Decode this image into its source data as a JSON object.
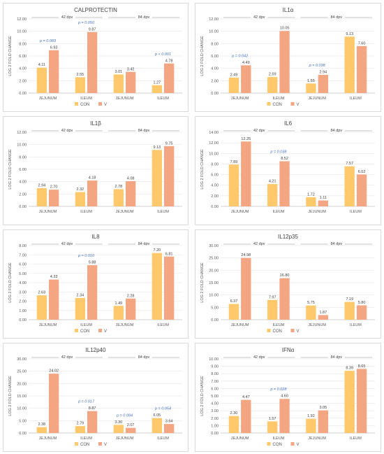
{
  "colors": {
    "con": "#ffc96b",
    "v": "#f4a582",
    "grid": "#e6e6e6",
    "axis": "#bfbfbf"
  },
  "chart_data": [
    {
      "type": "bar",
      "title": "CALPROTECTIN",
      "ylabel": "LOG 2 FOLD CHANGE",
      "ylim": [
        0,
        12
      ],
      "yticks": [
        "0.00",
        "2.00",
        "4.00",
        "6.00",
        "8.00",
        "10.00",
        "12.00"
      ],
      "categories": [
        "JEJUNUM",
        "ILEUM",
        "JEJUNUM",
        "ILEUM"
      ],
      "groups": [
        "42 dpv",
        "84 dpv"
      ],
      "legend": [
        "CON",
        "V"
      ],
      "series": [
        {
          "name": "CON",
          "values": [
            4.11,
            2.55,
            3.01,
            1.27
          ],
          "labels": [
            "4.11",
            "2.55",
            "3.01",
            "1.27"
          ]
        },
        {
          "name": "V",
          "values": [
            6.93,
            9.87,
            3.42,
            4.78
          ],
          "labels": [
            "6.93",
            "9.87",
            "3.42",
            "4.78"
          ]
        }
      ],
      "pvalues": [
        "p = 0.083",
        "p = 0.050",
        "",
        "p < 0.001"
      ]
    },
    {
      "type": "bar",
      "title": "IL1α",
      "ylabel": "LOG 2 FOLD CHANGE",
      "ylim": [
        0,
        12
      ],
      "yticks": [
        "0.00",
        "2.00",
        "4.00",
        "6.00",
        "8.00",
        "10.00",
        "12.00"
      ],
      "categories": [
        "JEJUNUM",
        "ILEUM",
        "JEJUNUM",
        "ILEUM"
      ],
      "groups": [
        "42 dpv",
        "84 dpv"
      ],
      "legend": [
        "CON",
        "V"
      ],
      "series": [
        {
          "name": "CON",
          "values": [
            2.49,
            2.59,
            1.55,
            9.13
          ],
          "labels": [
            "2.49",
            "2.59",
            "1.55",
            "9.13"
          ]
        },
        {
          "name": "V",
          "values": [
            4.49,
            10.05,
            2.94,
            7.6
          ],
          "labels": [
            "4.49",
            "10.05",
            "2.94",
            "7.60"
          ]
        }
      ],
      "pvalues": [
        "p = 0.042",
        "",
        "p = 0.038",
        ""
      ]
    },
    {
      "type": "bar",
      "title": "IL1β",
      "ylabel": "LOG 2 FOLD CHANGE",
      "ylim": [
        0,
        12
      ],
      "yticks": [
        "0.00",
        "2.00",
        "4.00",
        "6.00",
        "8.00",
        "10.00",
        "12.00"
      ],
      "categories": [
        "JEJUNUM",
        "ILEUM",
        "JEJUNUM",
        "ILEUM"
      ],
      "groups": [
        "42 dpv",
        "84 dpv"
      ],
      "legend": [],
      "series": [
        {
          "name": "CON",
          "values": [
            2.94,
            2.32,
            2.78,
            9.13
          ],
          "labels": [
            "2.94",
            "2.32",
            "2.78",
            "9.13"
          ]
        },
        {
          "name": "V",
          "values": [
            2.7,
            4.18,
            4.08,
            9.75
          ],
          "labels": [
            "2.70",
            "4.18",
            "4.08",
            "9.75"
          ]
        }
      ],
      "pvalues": [
        "",
        "",
        "",
        ""
      ]
    },
    {
      "type": "bar",
      "title": "IL6",
      "ylabel": "LOG 2 FOLD CHANGE",
      "ylim": [
        0,
        14
      ],
      "yticks": [
        "0.00",
        "2.00",
        "4.00",
        "6.00",
        "8.00",
        "10.00",
        "12.00",
        "14.00"
      ],
      "categories": [
        "JEJUNUM",
        "ILEUM",
        "JEJUNUM",
        "ILEUM"
      ],
      "groups": [
        "42 dpv",
        "84 dpv"
      ],
      "legend": [],
      "series": [
        {
          "name": "CON",
          "values": [
            7.89,
            4.21,
            1.72,
            7.57
          ],
          "labels": [
            "7.89",
            "4.21",
            "1.72",
            "7.57"
          ]
        },
        {
          "name": "V",
          "values": [
            12.25,
            8.52,
            1.11,
            6.02
          ],
          "labels": [
            "12.25",
            "8.52",
            "1.11",
            "6.02"
          ]
        }
      ],
      "pvalues": [
        "",
        "p = 0.038",
        "",
        ""
      ]
    },
    {
      "type": "bar",
      "title": "IL8",
      "ylabel": "LOG 2 FOLD CHANGE",
      "ylim": [
        0,
        8
      ],
      "yticks": [
        "0.00",
        "1.00",
        "2.00",
        "3.00",
        "4.00",
        "5.00",
        "6.00",
        "7.00",
        "8.00"
      ],
      "categories": [
        "JEJUNUM",
        "ILEUM",
        "JEJUNUM",
        "ILEUM"
      ],
      "groups": [
        "42 dpv",
        "84 dpv"
      ],
      "legend": [
        "CON",
        "V"
      ],
      "series": [
        {
          "name": "CON",
          "values": [
            2.63,
            2.34,
            1.49,
            7.2
          ],
          "labels": [
            "2.63",
            "2.34",
            "1.49",
            "7.20"
          ]
        },
        {
          "name": "V",
          "values": [
            4.33,
            5.88,
            2.28,
            6.81
          ],
          "labels": [
            "4.33",
            "5.88",
            "2.28",
            "6.81"
          ]
        }
      ],
      "pvalues": [
        "",
        "p = 0.010",
        "",
        ""
      ]
    },
    {
      "type": "bar",
      "title": "IL12p35",
      "ylabel": "LOG 2 FOLD CHANGE",
      "ylim": [
        0,
        30
      ],
      "yticks": [
        "0.00",
        "5.00",
        "10.00",
        "15.00",
        "20.00",
        "25.00",
        "30.00"
      ],
      "categories": [
        "JEJUNUM",
        "ILEUM",
        "JEJUNUM",
        "ILEUM"
      ],
      "groups": [
        "42 dpv",
        "84 dpv"
      ],
      "legend": [
        "CON",
        "V"
      ],
      "series": [
        {
          "name": "CON",
          "values": [
            6.37,
            7.97,
            5.75,
            7.19
          ],
          "labels": [
            "6.37",
            "7.97",
            "5.75",
            "7.19"
          ]
        },
        {
          "name": "V",
          "values": [
            24.98,
            16.8,
            1.87,
            5.8
          ],
          "labels": [
            "24.98",
            "16.80",
            "1.87",
            "5.80"
          ]
        }
      ],
      "pvalues": [
        "",
        "",
        "",
        ""
      ]
    },
    {
      "type": "bar",
      "title": "IL12p40",
      "ylabel": "LOG 2 FOLD CHANGE",
      "ylim": [
        0,
        30
      ],
      "yticks": [
        "0.00",
        "5.00",
        "10.00",
        "15.00",
        "20.00",
        "25.00",
        "30.00"
      ],
      "categories": [
        "JEJUNUM",
        "ILEUM",
        "JEJUNUM",
        "ILEUM"
      ],
      "groups": [
        "42 dpv",
        "84 dpv"
      ],
      "legend": [
        "CON",
        "V"
      ],
      "series": [
        {
          "name": "CON",
          "values": [
            2.38,
            2.79,
            3.3,
            6.05
          ],
          "labels": [
            "2.38",
            "2.79",
            "3.30",
            "6.05"
          ]
        },
        {
          "name": "V",
          "values": [
            24.02,
            8.87,
            2.07,
            3.64
          ],
          "labels": [
            "24.02",
            "8.87",
            "2.07",
            "3.64"
          ]
        }
      ],
      "pvalues": [
        "",
        "p = 0.017",
        "p = 0.094",
        "p = 0.054"
      ]
    },
    {
      "type": "bar",
      "title": "IFNα",
      "ylabel": "LOG 2 FOLD CHANGE",
      "ylim": [
        0,
        10
      ],
      "yticks": [
        "0.00",
        "1.00",
        "2.00",
        "3.00",
        "4.00",
        "5.00",
        "6.00",
        "7.00",
        "8.00",
        "9.00",
        "10.00"
      ],
      "categories": [
        "JEJUNUM",
        "ILEUM",
        "JEJUNUM",
        "ILEUM"
      ],
      "groups": [
        "42 dpv",
        "84 dpv"
      ],
      "legend": [
        "CON",
        "V"
      ],
      "series": [
        {
          "name": "CON",
          "values": [
            2.3,
            1.57,
            1.92,
            8.39
          ],
          "labels": [
            "2.30",
            "1.57",
            "1.92",
            "8.39"
          ]
        },
        {
          "name": "V",
          "values": [
            4.47,
            4.6,
            3.05,
            8.65
          ],
          "labels": [
            "4.47",
            "4.60",
            "3.05",
            "8.65"
          ]
        }
      ],
      "pvalues": [
        "",
        "p = 0.028",
        "",
        ""
      ]
    }
  ]
}
